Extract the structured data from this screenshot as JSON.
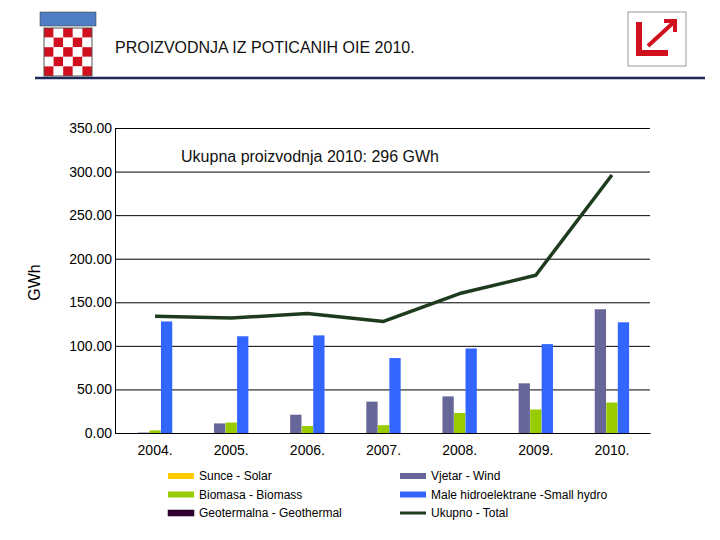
{
  "chart_data": {
    "type": "bar",
    "title": "PROIZVODNJA IZ POTICANIH OIE 2010.",
    "annotation": "Ukupna proizvodnja 2010: 296 GWh",
    "y_label": "GWh",
    "categories": [
      "2004.",
      "2005.",
      "2006.",
      "2007.",
      "2008.",
      "2009.",
      "2010."
    ],
    "series": [
      {
        "name": "Sunce - Solar",
        "color": "#ffcc00",
        "values": [
          0,
          0,
          0,
          0,
          0,
          0,
          0
        ]
      },
      {
        "name": "Vjetar - Wind",
        "color": "#666699",
        "values": [
          0.5,
          11,
          21,
          36,
          42,
          57,
          142
        ]
      },
      {
        "name": "Biomasa - Biomass",
        "color": "#99cc00",
        "values": [
          3,
          12,
          8,
          9,
          23,
          27,
          35
        ]
      },
      {
        "name": "Male hidroelektrane  -Small hydro",
        "color": "#3366ff",
        "values": [
          128,
          111,
          112,
          86,
          97,
          102,
          127
        ]
      },
      {
        "name": "Geotermalna - Geothermal",
        "color": "#330033",
        "values": [
          0,
          0,
          0,
          0,
          0,
          0,
          0
        ]
      },
      {
        "name": "Ukupno - Total",
        "color": "#1e3b1e",
        "type": "line",
        "values": [
          134,
          132,
          137,
          128,
          160,
          181,
          296
        ]
      }
    ],
    "ylim": [
      0,
      350
    ],
    "yticks": [
      {
        "value": 0,
        "label": "0.00"
      },
      {
        "value": 50,
        "label": "50.00"
      },
      {
        "value": 100,
        "label": "100.00"
      },
      {
        "value": 150,
        "label": "150.00"
      },
      {
        "value": 200,
        "label": "200.00"
      },
      {
        "value": 250,
        "label": "250.00"
      },
      {
        "value": 300,
        "label": "300.00"
      },
      {
        "value": 350,
        "label": "350.00"
      }
    ],
    "grid": true,
    "legend": "bottom"
  }
}
